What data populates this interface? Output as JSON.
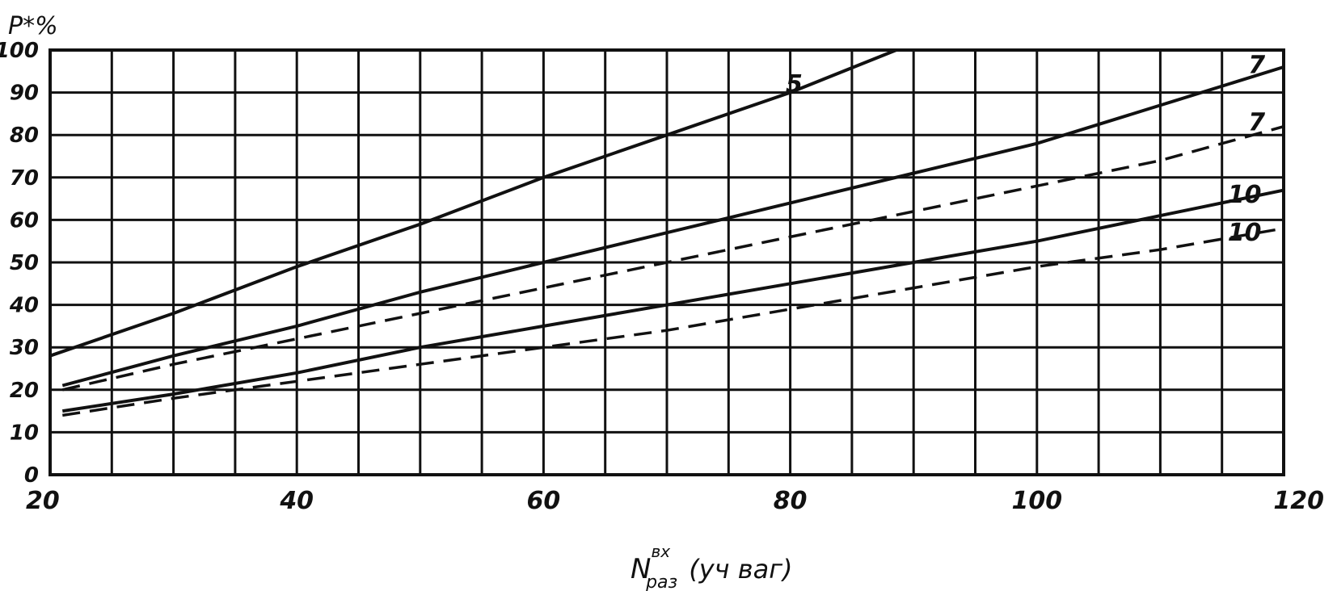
{
  "chart_data": {
    "type": "line",
    "ylabel": "P*%",
    "xlabel": {
      "main": "N",
      "superscript": "вх",
      "subscript": "раз",
      "suffix": "(уч ваг)"
    },
    "xlim": [
      20,
      120
    ],
    "ylim": [
      0,
      100
    ],
    "x_ticks": [
      "20",
      "40",
      "60",
      "80",
      "100",
      "120"
    ],
    "y_ticks": [
      "0",
      "10",
      "20",
      "30",
      "40",
      "50",
      "60",
      "70",
      "80",
      "90",
      "100"
    ],
    "grid": true,
    "series": [
      {
        "name": "5",
        "style": "solid",
        "x": [
          20,
          30,
          40,
          50,
          60,
          70,
          80,
          88.6
        ],
        "y": [
          28,
          38,
          49,
          59,
          70,
          80,
          90,
          100
        ]
      },
      {
        "name": "7",
        "style": "solid",
        "x": [
          21,
          30,
          40,
          50,
          60,
          70,
          80,
          90,
          100,
          110,
          120
        ],
        "y": [
          21,
          28,
          35,
          43,
          50,
          57,
          64,
          71,
          78,
          87,
          96
        ]
      },
      {
        "name": "7",
        "style": "dashed",
        "x": [
          21,
          30,
          40,
          50,
          60,
          70,
          80,
          90,
          100,
          110,
          120
        ],
        "y": [
          20,
          26,
          32,
          38,
          44,
          50,
          56,
          62,
          68,
          74,
          82
        ]
      },
      {
        "name": "10",
        "style": "solid",
        "x": [
          21,
          30,
          40,
          50,
          60,
          70,
          80,
          90,
          100,
          110,
          120
        ],
        "y": [
          15,
          19,
          24,
          30,
          35,
          40,
          45,
          50,
          55,
          61,
          67
        ]
      },
      {
        "name": "10",
        "style": "dashed",
        "x": [
          21,
          30,
          40,
          50,
          60,
          70,
          80,
          90,
          100,
          110,
          120
        ],
        "y": [
          14,
          18,
          22,
          26,
          30,
          34,
          39,
          44,
          49,
          53,
          58
        ]
      }
    ]
  }
}
